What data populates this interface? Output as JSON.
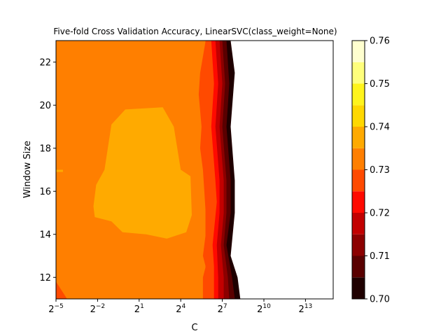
{
  "chart_data": {
    "type": "contour",
    "title": "Five-fold Cross Validation Accuracy, LinearSVC(class_weight=None)",
    "xlabel": "C",
    "ylabel": "Window Size",
    "x_scale": "log2",
    "x_exponent_range": [
      -5,
      15
    ],
    "ylim": [
      11,
      23
    ],
    "x_ticks": [
      {
        "base": "2",
        "exp": "−5",
        "value": -5
      },
      {
        "base": "2",
        "exp": "−2",
        "value": -2
      },
      {
        "base": "2",
        "exp": "1",
        "value": 1
      },
      {
        "base": "2",
        "exp": "4",
        "value": 4
      },
      {
        "base": "2",
        "exp": "7",
        "value": 7
      },
      {
        "base": "2",
        "exp": "10",
        "value": 10
      },
      {
        "base": "2",
        "exp": "13",
        "value": 13
      }
    ],
    "y_ticks": [
      12,
      14,
      16,
      18,
      20,
      22
    ],
    "colorbar": {
      "levels": [
        0.7,
        0.705,
        0.71,
        0.715,
        0.72,
        0.725,
        0.73,
        0.735,
        0.74,
        0.745,
        0.75,
        0.755,
        0.76
      ],
      "colors": [
        "#1f0000",
        "#5a0000",
        "#8c0000",
        "#c20000",
        "#ff0a00",
        "#ff4a00",
        "#ff7f00",
        "#ffaa00",
        "#ffd800",
        "#fff41c",
        "#ffff7c",
        "#ffffcf"
      ],
      "tick_labels": [
        "0.70",
        "0.71",
        "0.72",
        "0.73",
        "0.74",
        "0.75",
        "0.76"
      ]
    },
    "regions": [
      {
        "name": "accuracy 0.730-0.735",
        "level_index": 6,
        "outline": [
          [
            -5,
            11
          ],
          [
            -5,
            23
          ],
          [
            5.8,
            23
          ],
          [
            5.8,
            11
          ]
        ]
      },
      {
        "name": "accuracy 0.735-0.740",
        "level_index": 7,
        "outline": [
          [
            -1.0,
            19.1
          ],
          [
            0.0,
            19.8
          ],
          [
            2.7,
            19.9
          ],
          [
            3.5,
            19.0
          ],
          [
            4.0,
            17.0
          ],
          [
            4.7,
            16.7
          ],
          [
            4.8,
            14.9
          ],
          [
            4.4,
            14.1
          ],
          [
            3.0,
            13.8
          ],
          [
            1.5,
            14.0
          ],
          [
            -0.2,
            14.1
          ],
          [
            -1.0,
            14.6
          ],
          [
            -2.2,
            14.8
          ],
          [
            -2.3,
            15.3
          ],
          [
            -2.1,
            16.3
          ],
          [
            -1.5,
            17.0
          ]
        ]
      },
      {
        "name": "accuracy 0.735-0.740 (edge)",
        "level_index": 7,
        "outline": [
          [
            -5,
            17.0
          ],
          [
            -4.5,
            17.0
          ],
          [
            -4.5,
            16.9
          ],
          [
            -5,
            16.9
          ]
        ]
      },
      {
        "name": "accuracy 0.725-0.730",
        "level_index": 5,
        "outline": [
          [
            -5,
            11.0
          ],
          [
            -5,
            11.8
          ],
          [
            -4.2,
            11.0
          ]
        ]
      },
      {
        "name": "accuracy 0.725-0.730 (ridge)",
        "level_index": 5,
        "boundary_left": [
          [
            5.8,
            23
          ],
          [
            5.4,
            21.5
          ],
          [
            5.3,
            20.5
          ],
          [
            5.5,
            19.0
          ],
          [
            5.4,
            18.0
          ],
          [
            5.6,
            17.0
          ],
          [
            5.7,
            16.0
          ],
          [
            5.8,
            15.0
          ],
          [
            5.8,
            14.0
          ],
          [
            5.6,
            13.0
          ],
          [
            5.8,
            12.5
          ],
          [
            5.6,
            12.0
          ],
          [
            5.6,
            11.0
          ]
        ],
        "boundary_right": [
          [
            6.2,
            23
          ],
          [
            6.4,
            21.0
          ],
          [
            6.2,
            19.0
          ],
          [
            6.5,
            16.5
          ],
          [
            6.6,
            15.5
          ],
          [
            6.3,
            13.5
          ],
          [
            6.4,
            12.5
          ],
          [
            6.4,
            11.0
          ]
        ]
      },
      {
        "name": "accuracy 0.720-0.725",
        "level_index": 4,
        "boundary_right": [
          [
            6.5,
            23
          ],
          [
            6.7,
            21.0
          ],
          [
            6.5,
            19.0
          ],
          [
            6.8,
            16.5
          ],
          [
            6.8,
            15.0
          ],
          [
            6.6,
            13.5
          ],
          [
            6.7,
            12.0
          ],
          [
            6.7,
            11.0
          ]
        ]
      },
      {
        "name": "accuracy 0.715-0.720",
        "level_index": 3,
        "boundary_right": [
          [
            6.8,
            23
          ],
          [
            7.0,
            21.0
          ],
          [
            6.8,
            19.0
          ],
          [
            7.1,
            16.5
          ],
          [
            7.1,
            15.0
          ],
          [
            6.9,
            13.5
          ],
          [
            7.1,
            12.0
          ],
          [
            7.1,
            11.0
          ]
        ]
      },
      {
        "name": "accuracy 0.710-0.715",
        "level_index": 2,
        "boundary_right": [
          [
            7.0,
            23
          ],
          [
            7.2,
            21.0
          ],
          [
            7.0,
            19.0
          ],
          [
            7.3,
            16.5
          ],
          [
            7.3,
            15.0
          ],
          [
            7.1,
            13.5
          ],
          [
            7.4,
            12.0
          ],
          [
            7.5,
            11.0
          ]
        ]
      },
      {
        "name": "accuracy 0.705-0.710",
        "level_index": 1,
        "boundary_right": [
          [
            7.3,
            23
          ],
          [
            7.5,
            21.0
          ],
          [
            7.3,
            19.0
          ],
          [
            7.6,
            16.5
          ],
          [
            7.6,
            15.0
          ],
          [
            7.3,
            13.5
          ],
          [
            7.7,
            12.0
          ],
          [
            7.9,
            11.0
          ]
        ]
      },
      {
        "name": "accuracy 0.700-0.705",
        "level_index": 0,
        "boundary_right": [
          [
            7.6,
            23
          ],
          [
            7.9,
            21.5
          ],
          [
            7.6,
            19.0
          ],
          [
            7.9,
            16.5
          ],
          [
            7.9,
            15.0
          ],
          [
            7.6,
            13.0
          ],
          [
            8.1,
            12.0
          ],
          [
            8.3,
            11.0
          ]
        ]
      }
    ],
    "masked_area": "white (no data) to the right of the contours"
  }
}
